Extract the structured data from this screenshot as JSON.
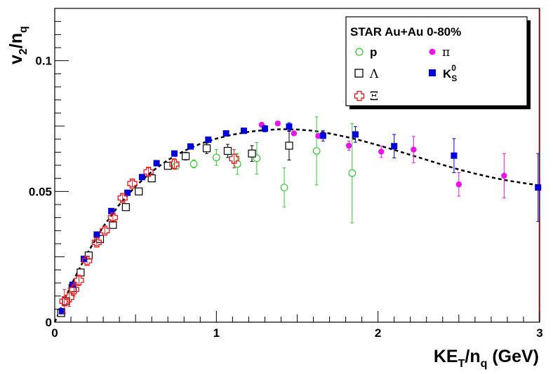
{
  "chart_data": {
    "type": "scatter",
    "xlabel": "KE_T/n_q (GeV)",
    "ylabel": "v_2/n_q",
    "xlim": [
      0,
      3
    ],
    "ylim": [
      0,
      0.12
    ],
    "x_ticks": [
      "0",
      "1",
      "2",
      "3"
    ],
    "y_ticks": [
      "0",
      "0.05",
      "0.1"
    ],
    "grid": false,
    "legend": {
      "title": "STAR Au+Au 0-80%",
      "placement": "top-right",
      "entries": [
        {
          "label": "p",
          "series": "p"
        },
        {
          "label": "π",
          "series": "pi"
        },
        {
          "label": "Λ",
          "series": "Lambda"
        },
        {
          "label": "K",
          "sub": "S",
          "sup": "0",
          "series": "K0S"
        },
        {
          "label": "Ξ",
          "series": "Xi"
        }
      ]
    },
    "colors": {
      "p": "#33cc33",
      "pi": "#ee11ee",
      "Lambda": "#000000",
      "K0S": "#0000dd",
      "Xi": "#ee2222",
      "fit": "#000000"
    },
    "series": [
      {
        "id": "p",
        "name": "p",
        "marker": "open-circle",
        "x": [
          0.75,
          0.86,
          1.0,
          1.13,
          1.25,
          1.42,
          1.62,
          1.84
        ],
        "y": [
          0.0597,
          0.0605,
          0.063,
          0.0605,
          0.0627,
          0.0515,
          0.0655,
          0.057
        ],
        "err": [
          0.001,
          0.0015,
          0.003,
          0.004,
          0.006,
          0.0075,
          0.013,
          0.019
        ]
      },
      {
        "id": "pi",
        "name": "π",
        "marker": "filled-circle",
        "x": [
          1.28,
          1.38,
          1.48,
          1.63,
          1.82,
          2.02,
          2.22,
          2.5,
          2.78
        ],
        "y": [
          0.0755,
          0.076,
          0.0722,
          0.0712,
          0.0675,
          0.0652,
          0.066,
          0.0527,
          0.056
        ],
        "err": [
          0.0003,
          0.0004,
          0.0005,
          0.0008,
          0.0018,
          0.0022,
          0.005,
          0.0045,
          0.0085
        ]
      },
      {
        "id": "Lambda",
        "name": "Λ",
        "marker": "open-square",
        "x": [
          0.04,
          0.07,
          0.11,
          0.16,
          0.21,
          0.28,
          0.36,
          0.44,
          0.52,
          0.6,
          0.7,
          0.81,
          0.94,
          1.07,
          1.22,
          1.45
        ],
        "y": [
          0.0035,
          0.008,
          0.013,
          0.019,
          0.0255,
          0.0318,
          0.0372,
          0.044,
          0.05,
          0.055,
          0.0598,
          0.0635,
          0.0665,
          0.0655,
          0.0645,
          0.0675
        ],
        "err": [
          0.0005,
          0.0005,
          0.0005,
          0.0005,
          0.0005,
          0.0005,
          0.0005,
          0.0005,
          0.0006,
          0.0008,
          0.001,
          0.0015,
          0.002,
          0.0025,
          0.003,
          0.0055
        ]
      },
      {
        "id": "K0S",
        "name": "K0S",
        "marker": "filled-square",
        "x": [
          0.045,
          0.11,
          0.18,
          0.26,
          0.35,
          0.45,
          0.54,
          0.63,
          0.74,
          0.84,
          0.95,
          1.06,
          1.17,
          1.3,
          1.45,
          1.66,
          1.86,
          2.1,
          2.47,
          2.99
        ],
        "y": [
          0.0042,
          0.0143,
          0.0242,
          0.0335,
          0.0425,
          0.0495,
          0.0555,
          0.0608,
          0.0645,
          0.0672,
          0.0698,
          0.0722,
          0.0732,
          0.074,
          0.0748,
          0.0713,
          0.0718,
          0.0673,
          0.0637,
          0.0515
        ],
        "err": [
          0.0003,
          0.0003,
          0.0003,
          0.0003,
          0.0003,
          0.0003,
          0.0003,
          0.0003,
          0.0004,
          0.0005,
          0.0006,
          0.0008,
          0.001,
          0.0012,
          0.0015,
          0.002,
          0.003,
          0.0045,
          0.0065,
          0.013
        ]
      },
      {
        "id": "Xi",
        "name": "Ξ",
        "marker": "open-cross",
        "x": [
          0.06,
          0.09,
          0.12,
          0.15,
          0.2,
          0.26,
          0.31,
          0.36,
          0.42,
          0.48,
          0.58,
          0.74,
          1.11
        ],
        "y": [
          0.008,
          0.0095,
          0.0125,
          0.016,
          0.0235,
          0.0305,
          0.035,
          0.04,
          0.0475,
          0.053,
          0.0575,
          0.0605,
          0.0625
        ],
        "err": [
          0.0045,
          0.0035,
          0.0025,
          0.002,
          0.0015,
          0.0012,
          0.0012,
          0.0012,
          0.0012,
          0.0012,
          0.0015,
          0.002,
          0.0035
        ]
      }
    ],
    "fit_curve": {
      "style": "dashed",
      "x": [
        0.0,
        0.1,
        0.2,
        0.3,
        0.4,
        0.5,
        0.6,
        0.7,
        0.8,
        0.9,
        1.0,
        1.1,
        1.2,
        1.3,
        1.4,
        1.5,
        1.6,
        1.7,
        1.8,
        1.9,
        2.0,
        2.1,
        2.2,
        2.3,
        2.4,
        2.5,
        2.6,
        2.7,
        2.8,
        2.9,
        3.0
      ],
      "y": [
        0.0,
        0.014,
        0.0262,
        0.0365,
        0.045,
        0.052,
        0.0576,
        0.062,
        0.0655,
        0.0682,
        0.0702,
        0.0717,
        0.0728,
        0.0735,
        0.0738,
        0.0737,
        0.0732,
        0.0722,
        0.0709,
        0.0694,
        0.0677,
        0.0659,
        0.064,
        0.0621,
        0.0602,
        0.0584,
        0.0568,
        0.0554,
        0.0542,
        0.0532,
        0.0523
      ]
    }
  }
}
